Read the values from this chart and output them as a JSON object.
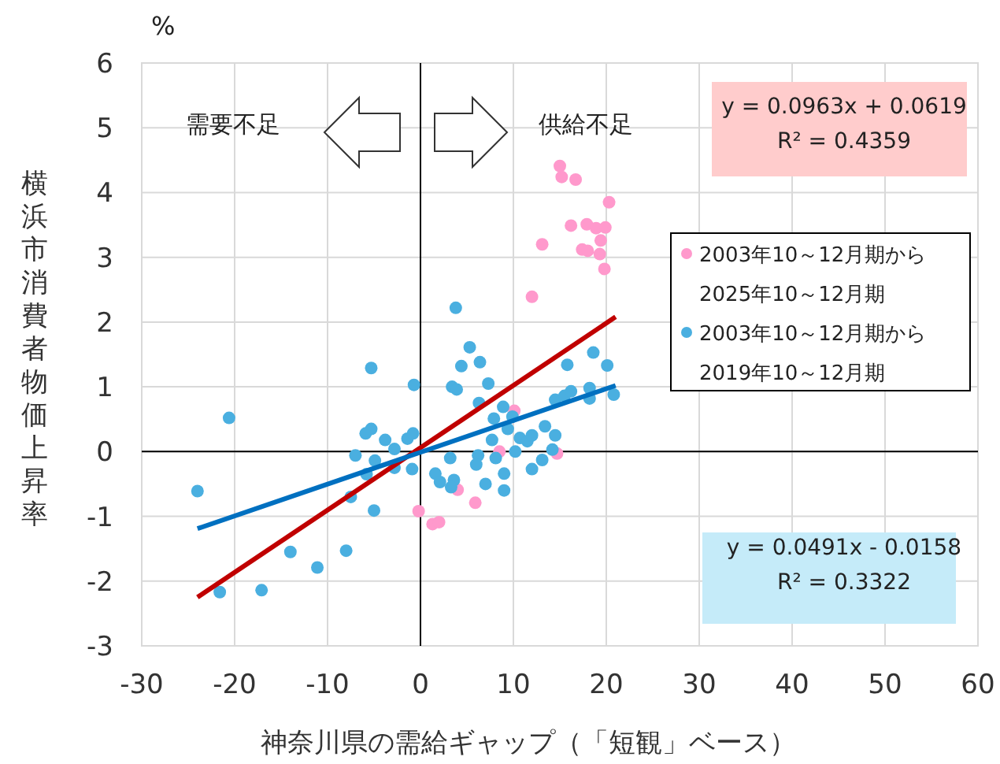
{
  "chart_data": {
    "type": "scatter",
    "xlabel": "神奈川県の需給ギャップ（「短観」ベース）",
    "ylabel": "横浜市消費者物価上昇率",
    "xlim": [
      -30,
      60
    ],
    "ylim": [
      -3,
      6
    ],
    "xticks": [
      -30,
      -20,
      -10,
      0,
      10,
      20,
      30,
      40,
      50,
      60
    ],
    "yticks": [
      -3,
      -2,
      -1,
      0,
      1,
      2,
      3,
      4,
      5,
      6
    ],
    "grid": true,
    "marker": "circle",
    "legend": "right",
    "annotations": [
      "%",
      "需要不足",
      "供給不足",
      "y = 0.0963x + 0.0619\nR² = 0.4359",
      "y = 0.0491x - 0.0158\nR² = 0.3322"
    ],
    "series": [
      {
        "name": "2003年10～12月期から2025年10～12月期",
        "color": "#ff99cc",
        "x": [
          10.1,
          8.5,
          14.7,
          4.0,
          5.9,
          -0.2,
          1.3,
          2.0,
          15.0,
          15.2,
          16.7,
          20.3,
          16.2,
          17.9,
          18.9,
          19.9,
          19.4,
          17.4,
          18.0,
          19.3,
          19.8,
          13.1,
          12.0
        ],
        "values": [
          0.63,
          0.0,
          -0.03,
          -0.59,
          -0.79,
          -0.92,
          -1.12,
          -1.09,
          4.41,
          4.24,
          4.2,
          3.85,
          3.49,
          3.51,
          3.45,
          3.46,
          3.26,
          3.12,
          3.1,
          3.05,
          2.82,
          3.2,
          2.39
        ]
      },
      {
        "name": "2003年10～12月期から2019年10～12月期",
        "color": "#4aafe0",
        "x": [
          -20.6,
          -24.0,
          -21.6,
          -17.1,
          -14.0,
          -11.1,
          -8.0,
          -5.3,
          -0.7,
          -5.9,
          -5.3,
          -3.8,
          -7.0,
          -4.9,
          -2.8,
          -1.4,
          -0.8,
          -5.8,
          -2.8,
          -0.9,
          -7.5,
          -5.0,
          3.2,
          1.6,
          2.1,
          3.6,
          3.3,
          5.3,
          4.4,
          6.4,
          3.4,
          3.9,
          7.3,
          6.3,
          7.9,
          8.9,
          9.9,
          9.4,
          7.7,
          8.1,
          6.2,
          6.0,
          7.0,
          9.0,
          9.0,
          10.2,
          10.7,
          11.5,
          12.0,
          13.4,
          14.5,
          12.0,
          13.1,
          14.2,
          14.5,
          15.5,
          16.2,
          18.2,
          18.2,
          20.8,
          20.1,
          18.6,
          15.8,
          3.8
        ],
        "values": [
          0.52,
          -0.61,
          -2.17,
          -2.14,
          -1.55,
          -1.79,
          -1.53,
          1.29,
          1.03,
          0.28,
          0.35,
          0.18,
          -0.06,
          -0.14,
          0.04,
          0.2,
          0.28,
          -0.35,
          -0.25,
          -0.27,
          -0.7,
          -0.91,
          -0.1,
          -0.34,
          -0.47,
          -0.44,
          -0.55,
          1.61,
          1.32,
          1.38,
          1.0,
          0.96,
          1.05,
          0.75,
          0.51,
          0.69,
          0.54,
          0.35,
          0.18,
          -0.1,
          -0.06,
          -0.2,
          -0.5,
          -0.34,
          -0.6,
          0.0,
          0.21,
          0.16,
          0.25,
          0.39,
          0.25,
          -0.27,
          -0.13,
          0.03,
          0.8,
          0.86,
          0.93,
          0.98,
          0.82,
          0.88,
          1.33,
          1.53,
          1.34,
          2.22
        ]
      },
      {
        "type": "line",
        "marker": "none",
        "color": "#c00000",
        "x": [
          -24,
          21
        ],
        "values": [
          -2.25,
          2.08
        ]
      },
      {
        "type": "line",
        "marker": "none",
        "color": "#0070c0",
        "x": [
          -24,
          21
        ],
        "values": [
          -1.19,
          1.02
        ]
      }
    ]
  }
}
